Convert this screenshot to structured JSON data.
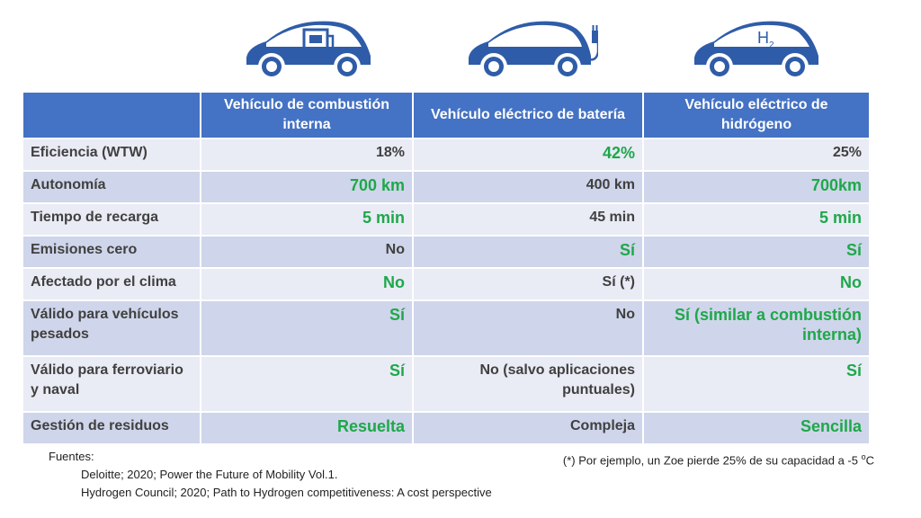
{
  "header": {
    "col0": "",
    "col1": "Vehículo de combustión interna",
    "col2": "Vehículo eléctrico de batería",
    "col3": "Vehículo eléctrico de hidrógeno"
  },
  "icons": {
    "col1": "car-fuel-pump-icon",
    "col2": "car-electric-plug-icon",
    "col3": "car-h2-icon",
    "h2_text": "H",
    "h2_sub": "2",
    "color": "#2e5ca8"
  },
  "rows": [
    {
      "label": "Eficiencia (WTW)",
      "v1": "18%",
      "v2": "42%",
      "v3": "25%"
    },
    {
      "label": "Autonomía",
      "v1": "700 km",
      "v2": "400 km",
      "v3": "700km"
    },
    {
      "label": "Tiempo de recarga",
      "v1": "5 min",
      "v2": "45 min",
      "v3": "5 min"
    },
    {
      "label": "Emisiones cero",
      "v1": "No",
      "v2": "Sí",
      "v3": "Sí"
    },
    {
      "label": "Afectado por el clima",
      "v1": "No",
      "v2": "Sí (*)",
      "v3": "No"
    },
    {
      "label": "Válido para vehículos pesados",
      "v1": "Sí",
      "v2": "No",
      "v3": "Sí (similar a combustión interna)"
    },
    {
      "label": "Válido para ferroviario y naval",
      "v1": "Sí",
      "v2": "No (salvo aplicaciones puntuales)",
      "v3": "Sí"
    },
    {
      "label": "Gestión de residuos",
      "v1": "Resuelta",
      "v2": "Compleja",
      "v3": "Sencilla"
    }
  ],
  "colors": {
    "header_bg": "#4472c4",
    "row_light": "#e9ebf5",
    "row_dark": "#cfd5ea",
    "highlight_green": "#1ea84a"
  },
  "sources": {
    "title": "Fuentes:",
    "ref1": "Deloitte; 2020; Power the Future of Mobility Vol.1.",
    "ref2": "Hydrogen Council; 2020; Path to Hydrogen competitiveness: A cost perspective"
  },
  "footnote": {
    "text": "(*) Por ejemplo, un Zoe pierde 25% de su capacidad a -5 ",
    "degree": "o",
    "unit": "C"
  }
}
